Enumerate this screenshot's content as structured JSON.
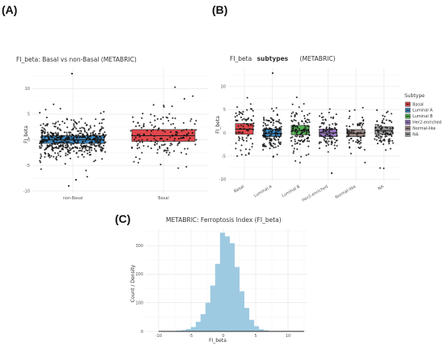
{
  "panels": {
    "A": {
      "letter": "(A)"
    },
    "B": {
      "letter": "(B)"
    },
    "C": {
      "letter": "(C)"
    }
  },
  "chart_data": [
    {
      "id": "A",
      "type": "box",
      "title": "FI_beta: Basal vs non-Basal (METABRIC)",
      "xlabel": "",
      "ylabel": "FI_beta",
      "categories": [
        "non-Basal",
        "Basal"
      ],
      "colors": [
        "#3d8ac4",
        "#e0474c"
      ],
      "yticks": [
        -10,
        -5,
        0,
        5,
        10
      ],
      "ylim": [
        -10.5,
        14
      ],
      "grid": true,
      "legend": "none",
      "box_stats": [
        {
          "category": "non-Basal",
          "q1": -0.7,
          "median": 0.0,
          "q3": 0.8,
          "whisker_low": -5.2,
          "whisker_high": 7.0,
          "n_points": 500
        },
        {
          "category": "Basal",
          "q1": -0.3,
          "median": 0.8,
          "q3": 2.0,
          "whisker_low": -2.8,
          "whisker_high": 4.8,
          "n_points": 160
        }
      ]
    },
    {
      "id": "B",
      "type": "box",
      "title_parts": [
        "FI_beta",
        "subtypes",
        "(METABRIC)"
      ],
      "xlabel": "",
      "ylabel": "FI_beta",
      "categories": [
        "Basal",
        "Luminal A",
        "Luminal B",
        "Her2-enriched",
        "Normal-like",
        "NA"
      ],
      "colors": [
        "#e0474c",
        "#3d8ac4",
        "#53b053",
        "#9a79c2",
        "#9a8883",
        "#999999"
      ],
      "yticks": [
        -10,
        -5,
        0,
        5,
        10
      ],
      "ylim": [
        -10.5,
        14
      ],
      "grid": true,
      "legend": {
        "title": "Subtype",
        "position": "right"
      },
      "box_stats": [
        {
          "category": "Basal",
          "q1": -0.3,
          "median": 0.8,
          "q3": 2.0,
          "n_points": 80
        },
        {
          "category": "Luminal A",
          "q1": -0.8,
          "median": -0.1,
          "q3": 0.8,
          "n_points": 140
        },
        {
          "category": "Luminal B",
          "q1": -0.4,
          "median": 0.5,
          "q3": 1.6,
          "n_points": 120
        },
        {
          "category": "Her2-enriched",
          "q1": -0.8,
          "median": 0.0,
          "q3": 0.8,
          "n_points": 90
        },
        {
          "category": "Normal-like",
          "q1": -0.8,
          "median": -0.1,
          "q3": 0.7,
          "n_points": 70
        },
        {
          "category": "NA",
          "q1": -0.3,
          "median": 0.5,
          "q3": 1.3,
          "n_points": 90
        }
      ]
    },
    {
      "id": "C",
      "type": "histogram",
      "title": "METABRIC: Ferroptosis Index (FI_beta)",
      "xlabel": "FI_beta",
      "ylabel": "Count / Density",
      "color": "#9ecae1",
      "xticks": [
        -10,
        -5,
        0,
        5,
        10
      ],
      "yticks": [
        0,
        100,
        200,
        300
      ],
      "xlim": [
        -12,
        13
      ],
      "ylim": [
        0,
        360
      ],
      "grid": true,
      "bin_width": 0.75,
      "bin_start": -10.25,
      "counts": [
        0,
        0,
        0,
        1,
        2,
        4,
        8,
        15,
        33,
        60,
        100,
        160,
        236,
        345,
        332,
        308,
        225,
        140,
        82,
        40,
        18,
        7,
        3,
        1,
        0,
        0,
        0,
        0,
        0,
        0,
        0
      ]
    }
  ]
}
